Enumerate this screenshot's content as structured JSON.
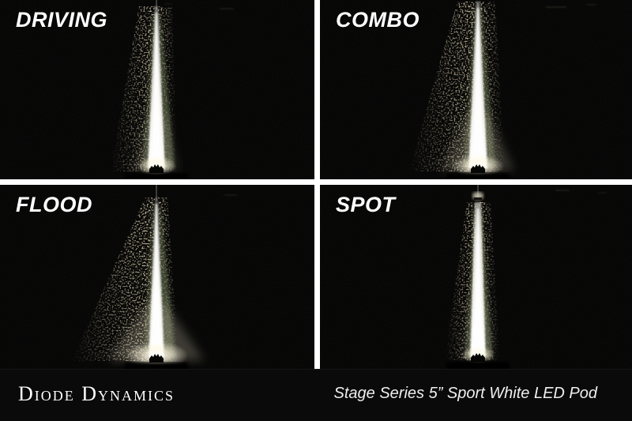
{
  "panels": [
    {
      "id": "driving",
      "label": "DRIVING"
    },
    {
      "id": "combo",
      "label": "COMBO"
    },
    {
      "id": "flood",
      "label": "FLOOD"
    },
    {
      "id": "spot",
      "label": "SPOT"
    }
  ],
  "footer": {
    "brand": "Diode Dynamics",
    "caption": "Stage Series 5” Sport White LED Pod"
  },
  "colors": {
    "divider": "#ffffff",
    "photo_bg": "#040404",
    "beam_white": "#f4f3e8",
    "glow_warm": "#fff8e0",
    "grass_green": "#5f6b4c",
    "gravel_tan": "#a38f5c",
    "ground_spread": "#e8e0c2",
    "streak": "#6f6753",
    "footer_bg": "#0a0a0a",
    "text": "#ffffff"
  }
}
